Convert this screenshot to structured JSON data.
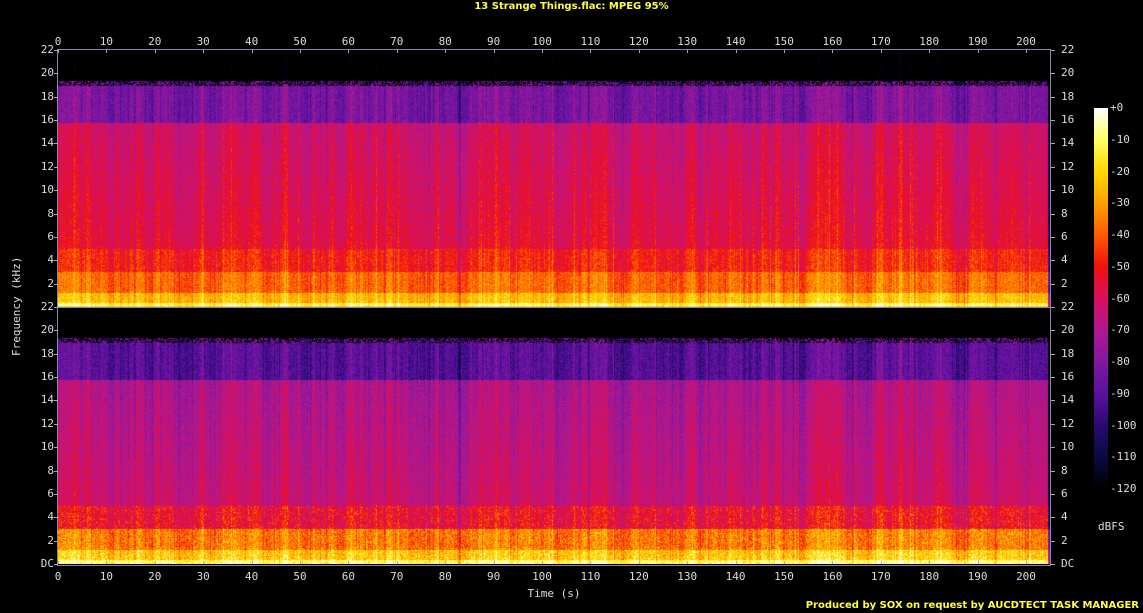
{
  "title": "13 Strange Things.flac: MPEG 95%",
  "credit": "Produced by SOX on request by AUCDTECT TASK MANAGER",
  "chart_data": {
    "type": "heatmap",
    "title": "13 Strange Things.flac: MPEG 95%",
    "xlabel": "Time (s)",
    "ylabel": "Frequency (kHz)",
    "xlim": [
      0,
      205
    ],
    "ylim": [
      0,
      22
    ],
    "x_ticks": [
      0,
      10,
      20,
      30,
      40,
      50,
      60,
      70,
      80,
      90,
      100,
      110,
      120,
      130,
      140,
      150,
      160,
      170,
      180,
      190,
      200
    ],
    "y_tick_labels": [
      "DC",
      "2",
      "4",
      "6",
      "8",
      "10",
      "12",
      "14",
      "16",
      "18",
      "20",
      "22"
    ],
    "channels": 2,
    "lowpass_cutoff_khz": 19,
    "colorbar": {
      "label": "dBFS",
      "range": [
        -120,
        0
      ],
      "tick_labels": [
        "+0",
        "-10",
        "-20",
        "-30",
        "-40",
        "-50",
        "-60",
        "-70",
        "-80",
        "-90",
        "-100",
        "-110",
        "-120"
      ],
      "colors": [
        "#000000",
        "#0a0a40",
        "#2a0a70",
        "#5a10a0",
        "#8018a0",
        "#b01890",
        "#d81060",
        "#f01010",
        "#ff5a00",
        "#ffa000",
        "#ffd800",
        "#ffff60",
        "#ffffff"
      ]
    }
  }
}
